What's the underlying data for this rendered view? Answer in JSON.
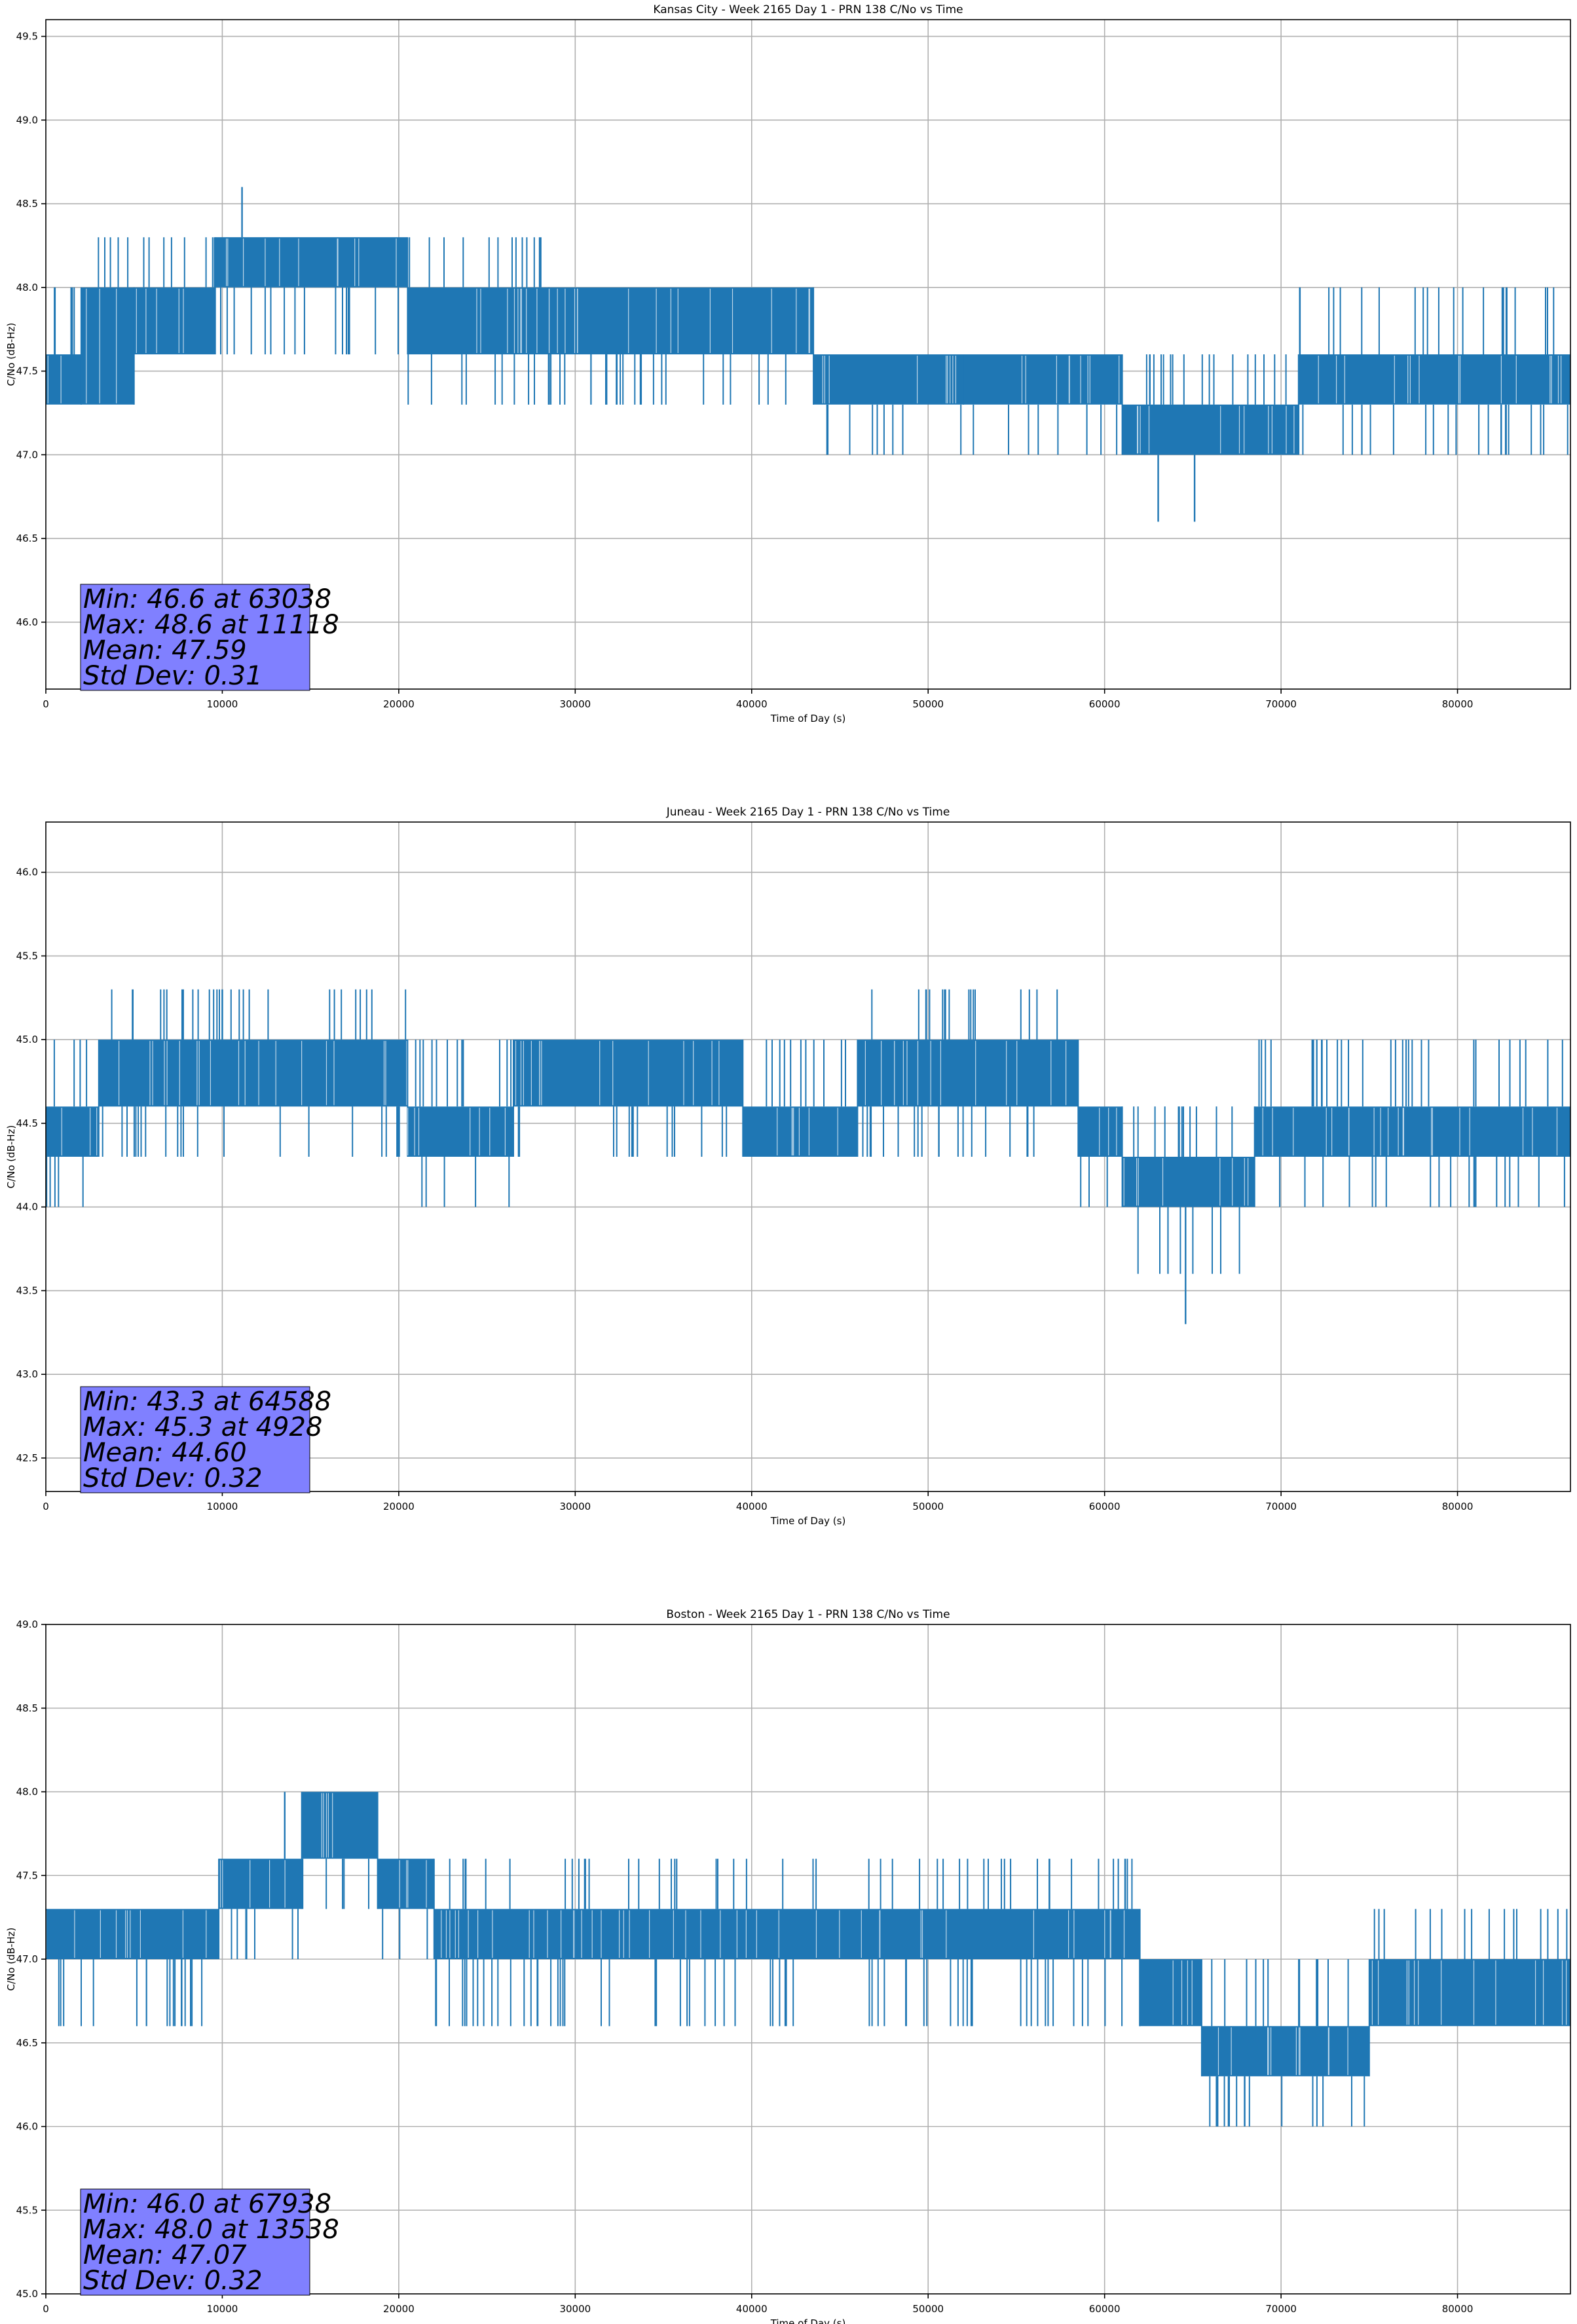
{
  "chart_data": [
    {
      "type": "line",
      "title": "Kansas City - Week 2165 Day 1 - PRN 138 C/No vs Time",
      "xlabel": "Time of Day (s)",
      "ylabel": "C/No (dB-Hz)",
      "xlim": [
        0,
        86400
      ],
      "ylim": [
        45.6,
        49.6
      ],
      "xticks": [
        0,
        10000,
        20000,
        30000,
        40000,
        50000,
        60000,
        70000,
        80000
      ],
      "yticks": [
        46.0,
        46.5,
        47.0,
        47.5,
        48.0,
        48.5,
        49.0,
        49.5
      ],
      "grid": true,
      "series_color": "#1f77b4",
      "quantization_db": 0.3,
      "series": [
        {
          "segments": [
            {
              "x": [
                0,
                2000
              ],
              "low": 47.3,
              "high": 47.6,
              "spikes_low": [
                47.3
              ],
              "spikes_high": [
                48.0
              ]
            },
            {
              "x": [
                2000,
                5000
              ],
              "low": 47.3,
              "high": 48.0,
              "spikes_low": [
                47.3
              ],
              "spikes_high": [
                48.3
              ]
            },
            {
              "x": [
                5000,
                9600
              ],
              "low": 47.6,
              "high": 48.0,
              "spikes_low": [
                47.6
              ],
              "spikes_high": [
                48.3
              ]
            },
            {
              "x": [
                9600,
                20500
              ],
              "low": 48.0,
              "high": 48.3,
              "spikes_low": [
                47.6
              ],
              "spikes_high": [
                48.3
              ]
            },
            {
              "x": [
                20500,
                28500
              ],
              "low": 47.6,
              "high": 48.0,
              "spikes_low": [
                47.3
              ],
              "spikes_high": [
                48.3
              ]
            },
            {
              "x": [
                28500,
                43500
              ],
              "low": 47.6,
              "high": 48.0,
              "spikes_low": [
                47.3
              ],
              "spikes_high": [
                48.0
              ]
            },
            {
              "x": [
                43500,
                52000
              ],
              "low": 47.3,
              "high": 47.6,
              "spikes_low": [
                47.0
              ],
              "spikes_high": [
                47.6
              ]
            },
            {
              "x": [
                52000,
                61000
              ],
              "low": 47.3,
              "high": 47.6,
              "spikes_low": [
                47.0
              ],
              "spikes_high": [
                47.6
              ]
            },
            {
              "x": [
                61000,
                71000
              ],
              "low": 47.0,
              "high": 47.3,
              "spikes_low": [
                47.0
              ],
              "spikes_high": [
                47.6
              ]
            },
            {
              "x": [
                71000,
                86400
              ],
              "low": 47.3,
              "high": 47.6,
              "spikes_low": [
                47.0
              ],
              "spikes_high": [
                48.0
              ]
            }
          ],
          "point_extremes": [
            {
              "x": 11118,
              "y": 48.6
            },
            {
              "x": 63038,
              "y": 46.6
            },
            {
              "x": 65100,
              "y": 46.6
            }
          ]
        }
      ],
      "stats": [
        "Min: 46.6 at 63038",
        "Max: 48.6 at 11118",
        "Mean: 47.59",
        "Std Dev: 0.31"
      ],
      "stats_box_color": "#8080ff"
    },
    {
      "type": "line",
      "title": "Juneau - Week 2165 Day 1 - PRN 138 C/No vs Time",
      "xlabel": "Time of Day (s)",
      "ylabel": "C/No (dB-Hz)",
      "xlim": [
        0,
        86400
      ],
      "ylim": [
        42.3,
        46.3
      ],
      "xticks": [
        0,
        10000,
        20000,
        30000,
        40000,
        50000,
        60000,
        70000,
        80000
      ],
      "yticks": [
        42.5,
        43.0,
        43.5,
        44.0,
        44.5,
        45.0,
        45.5,
        46.0
      ],
      "grid": true,
      "series_color": "#1f77b4",
      "quantization_db": 0.3,
      "series": [
        {
          "segments": [
            {
              "x": [
                0,
                3000
              ],
              "low": 44.3,
              "high": 44.6,
              "spikes_low": [
                44.0
              ],
              "spikes_high": [
                45.0
              ]
            },
            {
              "x": [
                3000,
                20500
              ],
              "low": 44.6,
              "high": 45.0,
              "spikes_low": [
                44.3
              ],
              "spikes_high": [
                45.3
              ]
            },
            {
              "x": [
                20500,
                26500
              ],
              "low": 44.3,
              "high": 44.6,
              "spikes_low": [
                44.0
              ],
              "spikes_high": [
                45.0
              ]
            },
            {
              "x": [
                26500,
                39500
              ],
              "low": 44.6,
              "high": 45.0,
              "spikes_low": [
                44.3
              ],
              "spikes_high": [
                45.0
              ]
            },
            {
              "x": [
                39500,
                46000
              ],
              "low": 44.3,
              "high": 44.6,
              "spikes_low": [
                44.3
              ],
              "spikes_high": [
                45.0
              ]
            },
            {
              "x": [
                46000,
                58500
              ],
              "low": 44.6,
              "high": 45.0,
              "spikes_low": [
                44.3
              ],
              "spikes_high": [
                45.3
              ]
            },
            {
              "x": [
                58500,
                61000
              ],
              "low": 44.3,
              "high": 44.6,
              "spikes_low": [
                44.0
              ],
              "spikes_high": [
                44.6
              ]
            },
            {
              "x": [
                61000,
                68500
              ],
              "low": 44.0,
              "high": 44.3,
              "spikes_low": [
                43.6
              ],
              "spikes_high": [
                44.6
              ]
            },
            {
              "x": [
                68500,
                86400
              ],
              "low": 44.3,
              "high": 44.6,
              "spikes_low": [
                44.0
              ],
              "spikes_high": [
                45.0
              ]
            }
          ],
          "point_extremes": [
            {
              "x": 64588,
              "y": 43.3
            },
            {
              "x": 4928,
              "y": 45.3
            }
          ]
        }
      ],
      "stats": [
        "Min: 43.3 at 64588",
        "Max: 45.3 at 4928",
        "Mean: 44.60",
        "Std Dev: 0.32"
      ],
      "stats_box_color": "#8080ff"
    },
    {
      "type": "line",
      "title": "Boston - Week 2165 Day 1 - PRN 138 C/No vs Time",
      "xlabel": "Time of Day (s)",
      "ylabel": "C/No (dB-Hz)",
      "xlim": [
        0,
        86400
      ],
      "ylim": [
        45.0,
        49.0
      ],
      "xticks": [
        0,
        10000,
        20000,
        30000,
        40000,
        50000,
        60000,
        70000,
        80000
      ],
      "yticks": [
        45.0,
        45.5,
        46.0,
        46.5,
        47.0,
        47.5,
        48.0,
        48.5,
        49.0
      ],
      "grid": true,
      "series_color": "#1f77b4",
      "quantization_db": 0.3,
      "series": [
        {
          "segments": [
            {
              "x": [
                0,
                9800
              ],
              "low": 47.0,
              "high": 47.3,
              "spikes_low": [
                46.6
              ],
              "spikes_high": [
                47.3
              ]
            },
            {
              "x": [
                9800,
                14500
              ],
              "low": 47.3,
              "high": 47.6,
              "spikes_low": [
                47.0
              ],
              "spikes_high": [
                47.6
              ]
            },
            {
              "x": [
                14500,
                18800
              ],
              "low": 47.6,
              "high": 48.0,
              "spikes_low": [
                47.3
              ],
              "spikes_high": [
                48.0
              ]
            },
            {
              "x": [
                18800,
                22000
              ],
              "low": 47.3,
              "high": 47.6,
              "spikes_low": [
                47.0
              ],
              "spikes_high": [
                47.6
              ]
            },
            {
              "x": [
                22000,
                62000
              ],
              "low": 47.0,
              "high": 47.3,
              "spikes_low": [
                46.6
              ],
              "spikes_high": [
                47.6
              ]
            },
            {
              "x": [
                62000,
                65500
              ],
              "low": 46.6,
              "high": 47.0,
              "spikes_low": [
                46.6
              ],
              "spikes_high": [
                47.0
              ]
            },
            {
              "x": [
                65500,
                75000
              ],
              "low": 46.3,
              "high": 46.6,
              "spikes_low": [
                46.0
              ],
              "spikes_high": [
                47.0
              ]
            },
            {
              "x": [
                75000,
                86400
              ],
              "low": 46.6,
              "high": 47.0,
              "spikes_low": [
                46.6
              ],
              "spikes_high": [
                47.3
              ]
            }
          ],
          "point_extremes": [
            {
              "x": 67938,
              "y": 46.0
            },
            {
              "x": 13538,
              "y": 48.0
            }
          ]
        }
      ],
      "stats": [
        "Min: 46.0 at 67938",
        "Max: 48.0 at 13538",
        "Mean: 47.07",
        "Std Dev: 0.32"
      ],
      "stats_box_color": "#8080ff"
    }
  ]
}
